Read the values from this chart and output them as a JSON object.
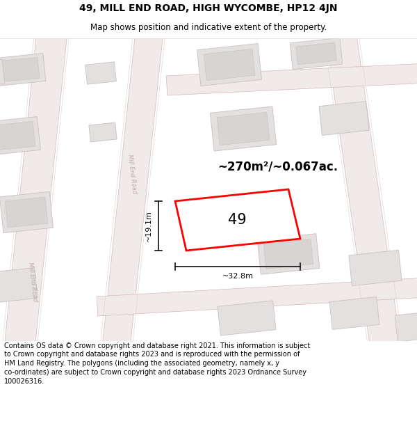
{
  "title": "49, MILL END ROAD, HIGH WYCOMBE, HP12 4JN",
  "subtitle": "Map shows position and indicative extent of the property.",
  "footer": "Contains OS data © Crown copyright and database right 2021. This information is subject\nto Crown copyright and database rights 2023 and is reproduced with the permission of\nHM Land Registry. The polygons (including the associated geometry, namely x, y\nco-ordinates) are subject to Crown copyright and database rights 2023 Ordnance Survey\n100026316.",
  "area_label": "~270m²/~0.067ac.",
  "width_label": "~32.8m",
  "height_label": "~19.1m",
  "plot_number": "49",
  "map_bg": "#f8f4f4",
  "road_fill": "#f0eaea",
  "road_edge": "#d4b8b8",
  "building_fill": "#e4e0e0",
  "building_edge": "#c8c0c0",
  "building_inner_fill": "#d8d4d4",
  "plot_edge": "#ff0000",
  "road_label_color": "#c0aaaa",
  "dim_color": "#111111",
  "title_fontsize": 10,
  "subtitle_fontsize": 8.5,
  "footer_fontsize": 7.0,
  "area_fontsize": 12,
  "plot_num_fontsize": 15
}
